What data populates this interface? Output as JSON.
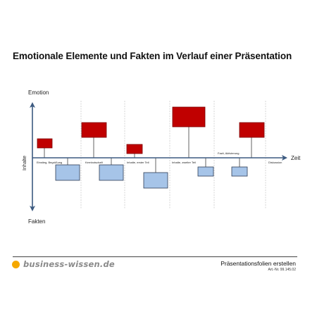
{
  "title": "Emotionale Elemente und Fakten im Verlauf einer Präsentation",
  "diagram": {
    "label_emotion": "Emotion",
    "label_fakten": "Fakten",
    "label_inhalte": "Inhalte",
    "label_zeit": "Zeit",
    "segments": [
      {
        "label": "Einstieg, Begrüßung"
      },
      {
        "label": "Kernbotschaft"
      },
      {
        "label": "Inhalte, erster Teil"
      },
      {
        "label": "Inhalte, zweiter Teil"
      },
      {
        "label": "Fazit, Aktivierung"
      },
      {
        "label": "Diskussion"
      }
    ],
    "colors": {
      "emotion_fill": "#c00000",
      "emotion_stroke": "#7a0000",
      "fakten_fill": "#a6c4e8",
      "fakten_stroke": "#2e3d55",
      "axis": "#3c5a80"
    }
  },
  "footer": {
    "brand": "business-wissen.de",
    "brand_color": "#f5a800",
    "product": "Präsentationsfolien erstellen",
    "art_nr": "Art.-Nr. 99.145.02"
  }
}
